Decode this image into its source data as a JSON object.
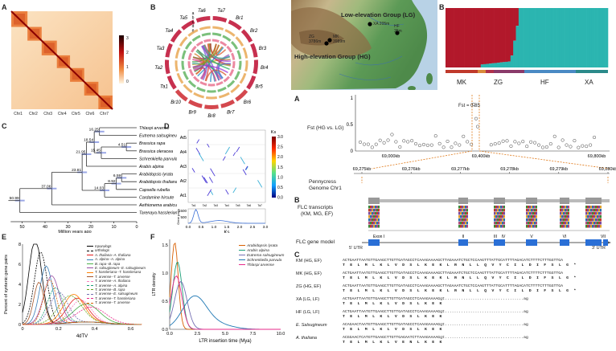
{
  "panel_labels": {
    "hic": "A",
    "circos": "B",
    "tree": "C",
    "dotplot": "D",
    "fourdtv": "E",
    "ltr": "F",
    "structure": "B",
    "fst": "A",
    "flc_tx": "B",
    "seq": "C"
  },
  "hic": {
    "chromosomes": [
      "Chr1",
      "Chr2",
      "Chr3",
      "Chr4",
      "Chr5",
      "Chr6",
      "Chr7"
    ],
    "colorbar_ticks": [
      "3",
      "2",
      "1",
      "0"
    ]
  },
  "circos": {
    "labels": [
      "Ta7",
      "Br1",
      "Br2",
      "Br3",
      "Br4",
      "Br5",
      "Br6",
      "Br7",
      "Br8",
      "Br9",
      "Br10",
      "Ta1",
      "Ta2",
      "Ta3",
      "Ta4",
      "Ta5",
      "Ta6"
    ],
    "rings": [
      "a",
      "b",
      "c",
      "d",
      "e"
    ]
  },
  "tree": {
    "taxa": [
      "Thlaspi arvense",
      "Eutrema salsugineum",
      "Brassica rapa",
      "Brassica oleracea",
      "Schrenkiella parvula",
      "Arabis alpina",
      "Arabidopsis lyrata",
      "Arabidopsis thaliana",
      "Capsella rubella",
      "Cardamine hirsute",
      "Aethionema arabicum",
      "Tarenaya hassleriana"
    ],
    "node_ages": [
      "16.25",
      "18.54",
      "4.51",
      "21.95",
      "15.45",
      "23.81",
      "6.59",
      "14.03",
      "8.92",
      "37.06",
      "50.99"
    ],
    "axis_ticks": [
      "50",
      "40",
      "30",
      "20",
      "10",
      "0"
    ],
    "axis_label": "Million years ago"
  },
  "dotplot": {
    "yticks": [
      "At5",
      "At4",
      "At3",
      "At2",
      "At1"
    ],
    "xticks": [
      "Ta1",
      "Ta2",
      "Ta3",
      "Ta4",
      "Ta5",
      "Ta6",
      "Ta7"
    ],
    "colorbar_title": "Ks",
    "colorbar_ticks": [
      "3.0",
      "2.5",
      "2.0",
      "1.5",
      "1.0",
      "0.5",
      "0.0"
    ],
    "hist_yticks": [
      "1500",
      "500"
    ],
    "hist_ylabel": "Gene pairs",
    "hist_xticks": [
      "0.0",
      "0.5",
      "1.0",
      "1.5",
      "2.0",
      "2.5",
      "3.0"
    ],
    "hist_xlabel": "Ks"
  },
  "fourdtv": {
    "ylabel": "Percent of syntenic gene pairs",
    "xlabel": "4dTV",
    "xticks": [
      "0",
      "0.2",
      "0.4",
      "0.6"
    ],
    "yticks": [
      "0",
      "2",
      "4",
      "6",
      "8"
    ],
    "legend": [
      {
        "name": "Inparalogs",
        "color": "#000000",
        "dash": false
      },
      {
        "name": "orthologs",
        "color": "#000000",
        "dash": true
      },
      {
        "name": "A. thaliana--A. thaliana",
        "color": "#e41a1c",
        "dash": false
      },
      {
        "name": "A. alpina--A. alpina",
        "color": "#377eb8",
        "dash": false
      },
      {
        "name": "B. rapa--B. rapa",
        "color": "#4daf4a",
        "dash": false
      },
      {
        "name": "E. salsugineum--E. salsugineum",
        "color": "#984ea3",
        "dash": false
      },
      {
        "name": "T. hassleriana--T. hassleriana",
        "color": "#ff7f00",
        "dash": false
      },
      {
        "name": "T. arvense--T. arvense",
        "color": "#a65628",
        "dash": false
      },
      {
        "name": "T. arvense--A. thaliana",
        "color": "#f781bf",
        "dash": true
      },
      {
        "name": "T. arvense--A. alpina",
        "color": "#1b9e77",
        "dash": true
      },
      {
        "name": "T. arvense--B. rapa",
        "color": "#66a61e",
        "dash": true
      },
      {
        "name": "T. arvense--E. salsugineum",
        "color": "#7570b3",
        "dash": true
      },
      {
        "name": "T. arvense--T. hassleriana",
        "color": "#e7298a",
        "dash": true
      },
      {
        "name": "T. arvense--T. arvense",
        "color": "#d95f02",
        "dash": true
      }
    ]
  },
  "ltr": {
    "ylabel": "LTR density",
    "xlabel": "LTR insertion time (Mya)",
    "xticks": [
      "0.0",
      "2.5",
      "5.0",
      "7.5",
      "10.0"
    ],
    "yticks": [
      "0.0",
      "0.5",
      "1.0",
      "1.5"
    ],
    "legend": [
      {
        "name": "Arabidopsis lyrata",
        "color": "#d95f02"
      },
      {
        "name": "Arabis alpina",
        "color": "#1b9e77"
      },
      {
        "name": "Eutrema salsugineum",
        "color": "#7570b3"
      },
      {
        "name": "Schrenkiella parvula",
        "color": "#1f78b4"
      },
      {
        "name": "Thlaspi arvense",
        "color": "#e7298a"
      }
    ]
  },
  "map": {
    "low_group": "Low-elevation Group (LG)",
    "high_group": "High-elevation Group (HG)",
    "sites": [
      {
        "name": "XA",
        "elev": "205m"
      },
      {
        "name": "HF",
        "elev": "35m"
      },
      {
        "name": "ZG",
        "elev": "3786m"
      },
      {
        "name": "MK",
        "elev": "3989m"
      }
    ]
  },
  "structure": {
    "groups": [
      "MK",
      "ZG",
      "HF",
      "XA"
    ],
    "colors": {
      "red": "#b2182b",
      "teal": "#2bb5b0"
    }
  },
  "fst": {
    "ylabel": "Fst (HG vs. LG)",
    "yticks": [
      "1",
      "0.5",
      "0"
    ],
    "threshold": "Fst = 0.85",
    "xticks": [
      "69,000kb",
      "69,400kb",
      "69,800kb"
    ],
    "zoom_label_1": "Pennycress",
    "zoom_label_2": "Genome Chr1",
    "zoom_ticks": [
      "69,275kb",
      "69,276kb",
      "69,277kb",
      "69,278kb",
      "69,279kb",
      "69,280kb"
    ]
  },
  "flc": {
    "tx_label_1": "FLC transcripts",
    "tx_label_2": "(KM, MG, EF)",
    "model_label": "FLC gene model",
    "utr5": "5' UTR",
    "utr3": "3' UTR",
    "exons": [
      "Exon I",
      "II",
      "III",
      "IV",
      "V",
      "VI",
      "VII"
    ]
  },
  "sequences": [
    {
      "label": "KM (HG, EF)",
      "seq": "ACTGAATTAATGTTGAAGCTTGTTGATAGCCTCAAAGAAAAGCTTAGAAATCTGCTCCAAGTTTATTGCATTTTAGACATCTTTTCTTTGGTTGA",
      "aa": "T E L M L K L V D S L K E K L R N L L Q V Y C I L D I F S L G *"
    },
    {
      "label": "MK (HG, EF)",
      "seq": "ACTGAATTAATGTTGAAGCTTGTTGATAGCCTCAAAGAAAAGCTTAGAAATCTGCTCCAAGTTTATTGCATTTTAGACATCTTTTCTTTGGTTGA",
      "aa": "T E L M L K L V D S L K E K L R N L L Q V Y C I L D I F S L G *"
    },
    {
      "label": "ZG (HG, EF)",
      "seq": "ACTGAATTAATGTTGAAGCTTGTTGATAGCCTCAAAGAAAAGCTTAGAAATCTGCTCCAAGTTTATTGCATTTTAGACATCTTTTCTTTGGTTGA",
      "aa": "T E L M L K L V D S L K E K L R N L L Q V Y C I L D I F S L G *"
    },
    {
      "label": "XA (LG, LF)",
      "seq": "ACTGAATTAATGTTGAAGCTTGTTGATAGCCTCAAAGAAAAGgt..................................ag",
      "aa": "T E L M L K L V D S L K E K"
    },
    {
      "label": "HF (LG, LF)",
      "seq": "ACTGAATTAATGTTGAAGCTTGTTGATAGCCTCAAAGAAAAGgt..................................ag",
      "aa": "T E L M L K L V D S L K E K"
    },
    {
      "label": "E. Salsugineum",
      "seq": "ACAGAACTAATGTTGAAGCTTGTTGATAGCCTCAAAGAAAAGgt..................................ag",
      "aa": "T E L M L K L V D S L K E K"
    },
    {
      "label": "A. thaliana",
      "seq": "ACGGAACTCATGTTGAAGCTTGTTGAGAATCTTAAAGAAAAGgt..................................ag",
      "aa": "T E L M L K L V E N L K E K"
    }
  ]
}
